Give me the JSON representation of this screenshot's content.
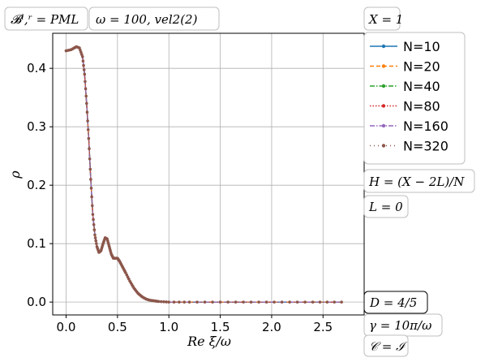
{
  "chart_data": {
    "type": "line",
    "xlabel": "Re ξ/ω",
    "ylabel": "ρ",
    "xlim": [
      -0.13,
      2.9
    ],
    "ylim": [
      -0.022,
      0.46
    ],
    "xticks": [
      0.0,
      0.5,
      1.0,
      1.5,
      2.0,
      2.5
    ],
    "xtick_labels": [
      "0.0",
      "0.5",
      "1.0",
      "1.5",
      "2.0",
      "2.5"
    ],
    "yticks": [
      0.0,
      0.1,
      0.2,
      0.3,
      0.4
    ],
    "ytick_labels": [
      "0.0",
      "0.1",
      "0.2",
      "0.3",
      "0.4"
    ],
    "grid": true,
    "legend_placement": "outside-right",
    "curve": {
      "x": [
        0.0,
        0.05,
        0.1,
        0.13,
        0.16,
        0.18,
        0.2,
        0.22,
        0.24,
        0.26,
        0.28,
        0.3,
        0.32,
        0.34,
        0.36,
        0.38,
        0.4,
        0.42,
        0.44,
        0.46,
        0.48,
        0.5,
        0.52,
        0.55,
        0.58,
        0.62,
        0.66,
        0.7,
        0.74,
        0.78,
        0.82,
        0.86,
        0.9,
        1.0,
        1.2,
        1.5,
        1.8,
        2.1,
        2.4,
        2.68
      ],
      "y": [
        0.43,
        0.432,
        0.437,
        0.435,
        0.42,
        0.39,
        0.34,
        0.28,
        0.21,
        0.15,
        0.115,
        0.095,
        0.085,
        0.088,
        0.1,
        0.11,
        0.108,
        0.095,
        0.082,
        0.075,
        0.075,
        0.075,
        0.07,
        0.06,
        0.05,
        0.036,
        0.024,
        0.015,
        0.009,
        0.005,
        0.003,
        0.002,
        0.001,
        0.0,
        0.0,
        0.0,
        0.0,
        0.0,
        0.0,
        0.0
      ]
    },
    "series": [
      {
        "name": "N=10",
        "color": "#1f77b4",
        "dash": "solid",
        "marker": "dot"
      },
      {
        "name": "N=20",
        "color": "#ff7f0e",
        "dash": "dashed",
        "marker": "dot"
      },
      {
        "name": "N=40",
        "color": "#2ca02c",
        "dash": "dashdot",
        "marker": "dot"
      },
      {
        "name": "N=80",
        "color": "#d62728",
        "dash": "dotted",
        "marker": "dot"
      },
      {
        "name": "N=160",
        "color": "#9467bd",
        "dash": "dashdot",
        "marker": "dot"
      },
      {
        "name": "N=320",
        "color": "#8c564b",
        "dash": "loose-dotted",
        "marker": "dot"
      }
    ],
    "annotations": {
      "top_left": "𝓑ˡ,ʳ = PML",
      "top_middle": "ω = 100, vel2(2)",
      "top_right": "X = 1",
      "right_1": "H = (X − 2L)/N",
      "right_2": "L = 0",
      "right_3": "D = 4/5",
      "right_4": "γ = 10π/ω",
      "right_5": "𝒞 = ℐ"
    }
  }
}
